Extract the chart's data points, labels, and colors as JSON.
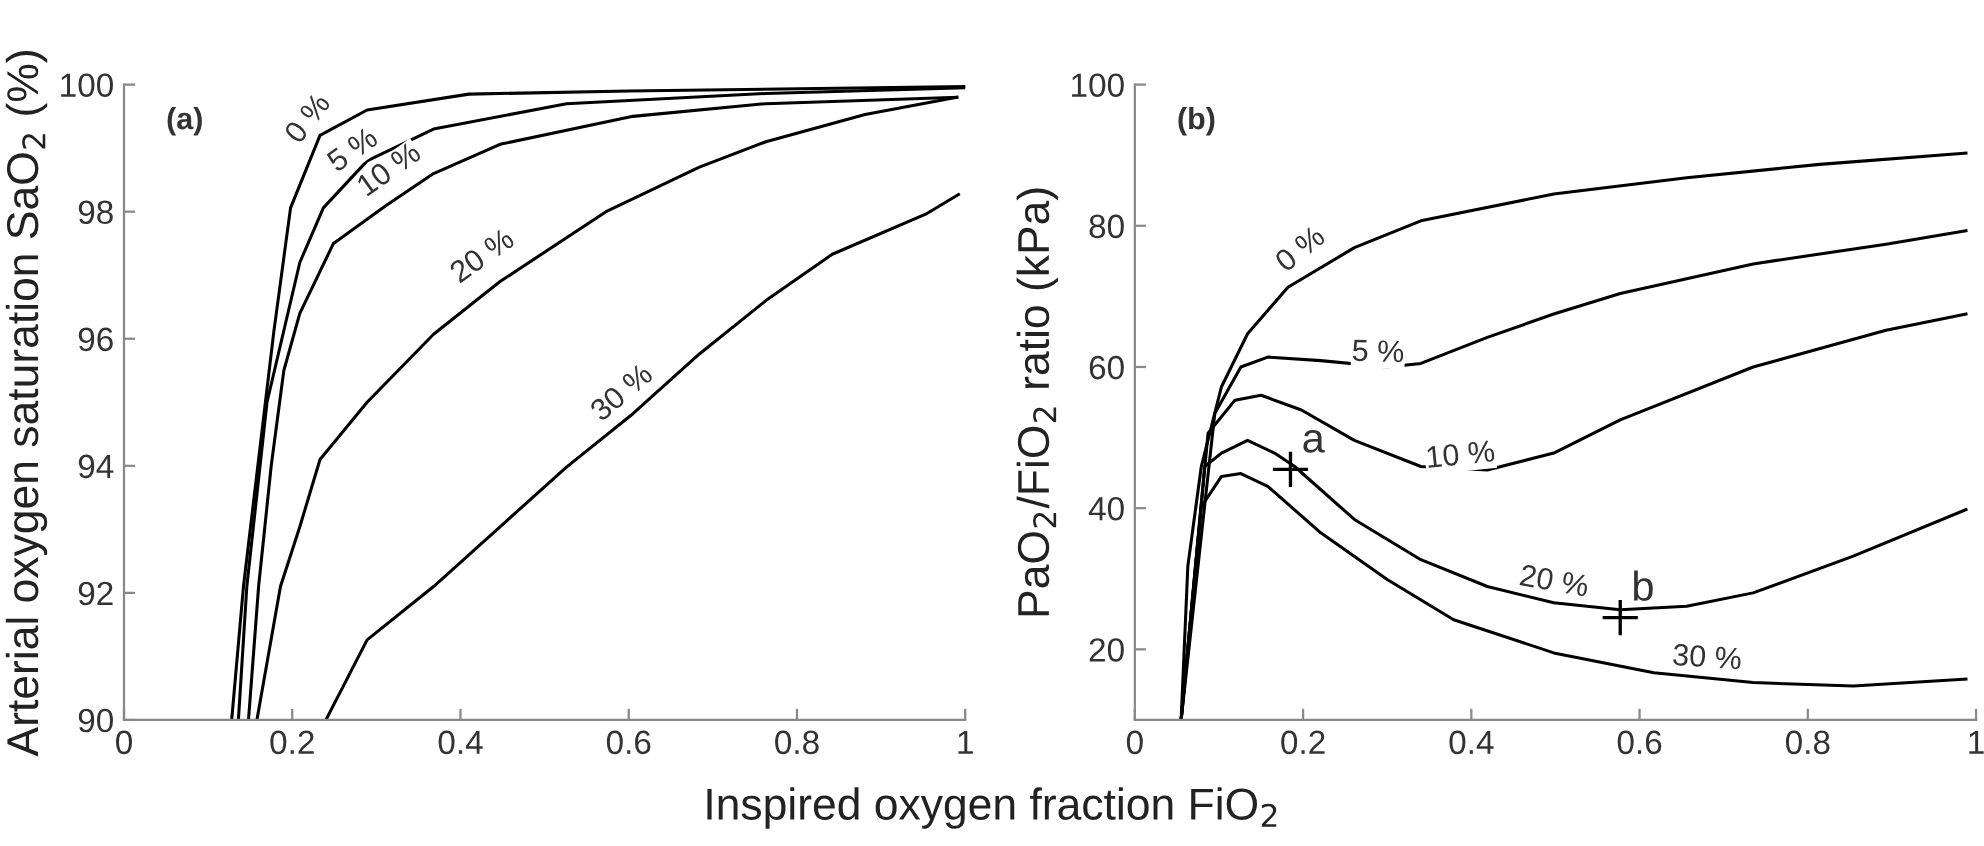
{
  "chart_data": [
    {
      "type": "line",
      "xlabel": "Inspired oxygen fraction FiO$_{2}$",
      "ylabel": "Arterial oxygen saturation SaO$_{2}$ (%)",
      "xlim": [
        0,
        1
      ],
      "ylim": [
        90,
        100
      ],
      "xticks": [
        0,
        0.2,
        0.4,
        0.6,
        0.8,
        1
      ],
      "yticks": [
        90,
        92,
        94,
        96,
        98,
        100
      ],
      "grid": false,
      "legend": false,
      "annotations": [
        "(a)",
        {
          "text": "0 %",
          "x": 0.22,
          "y": 99.45
        },
        {
          "text": "5 %",
          "x": 0.273,
          "y": 98.95
        },
        {
          "text": "10 %",
          "x": 0.316,
          "y": 98.64
        },
        {
          "text": "20 %",
          "x": 0.427,
          "y": 97.28
        },
        {
          "text": "30 %",
          "x": 0.593,
          "y": 95.13
        }
      ],
      "series": [
        {
          "color": "#000000",
          "x": [
            0.128,
            0.142,
            0.178,
            0.198,
            0.233,
            0.289,
            0.41,
            0.6,
            1.0
          ],
          "values": [
            90,
            92.1,
            96.1,
            98.06,
            99.2,
            99.6,
            99.85,
            99.9,
            99.97
          ]
        },
        {
          "color": "#000000",
          "x": [
            0.136,
            0.146,
            0.17,
            0.209,
            0.237,
            0.289,
            0.368,
            0.526,
            0.763,
            1.0
          ],
          "values": [
            90,
            92.1,
            95.0,
            97.2,
            98.06,
            98.8,
            99.3,
            99.7,
            99.86,
            99.95
          ]
        },
        {
          "color": "#000000",
          "x": [
            0.148,
            0.16,
            0.175,
            0.19,
            0.209,
            0.249,
            0.312,
            0.368,
            0.447,
            0.605,
            0.763,
            0.99
          ],
          "values": [
            90,
            92.1,
            94.0,
            95.5,
            96.4,
            97.5,
            98.1,
            98.6,
            99.06,
            99.5,
            99.7,
            99.8
          ]
        },
        {
          "color": "#000000",
          "x": [
            0.158,
            0.186,
            0.209,
            0.233,
            0.289,
            0.368,
            0.447,
            0.573,
            0.684,
            0.763,
            0.881,
            0.99
          ],
          "values": [
            90,
            92.1,
            93.04,
            94.1,
            95.0,
            96.07,
            96.9,
            98.0,
            98.7,
            99.1,
            99.53,
            99.8
          ]
        },
        {
          "color": "#000000",
          "x": [
            0.24,
            0.289,
            0.368,
            0.447,
            0.526,
            0.605,
            0.684,
            0.763,
            0.842,
            0.953,
            0.992
          ],
          "values": [
            90,
            91.26,
            92.1,
            93.04,
            93.98,
            94.82,
            95.76,
            96.6,
            97.33,
            97.96,
            98.27
          ]
        }
      ]
    },
    {
      "type": "line",
      "ylabel": "PaO$_{2}$/FiO$_{2}$ ratio (kPa)",
      "xlim": [
        0,
        1
      ],
      "ylim": [
        10,
        100
      ],
      "xticks": [
        0,
        0.2,
        0.4,
        0.6,
        0.8,
        1
      ],
      "yticks": [
        20,
        40,
        60,
        80,
        100
      ],
      "grid": false,
      "legend": false,
      "annotations": [
        "(b)",
        {
          "text": "0 %",
          "x": 0.198,
          "y": 76.5
        },
        {
          "text": "5 %",
          "x": 0.289,
          "y": 61.9
        },
        {
          "text": "10 %",
          "x": 0.387,
          "y": 47.3
        },
        {
          "text": "20 %",
          "x": 0.498,
          "y": 29.4
        },
        {
          "text": "30 %",
          "x": 0.68,
          "y": 18.6
        },
        {
          "text": "a",
          "x": 0.185,
          "y": 45.5
        },
        {
          "text": "b",
          "x": 0.577,
          "y": 24.5
        }
      ],
      "series": [
        {
          "color": "#000000",
          "x": [
            0.055,
            0.063,
            0.079,
            0.103,
            0.134,
            0.182,
            0.261,
            0.34,
            0.498,
            0.656,
            0.814,
            0.988
          ],
          "values": [
            10,
            31.8,
            45.9,
            57.2,
            64.7,
            71.3,
            76.9,
            80.7,
            84.5,
            86.8,
            88.7,
            90.3
          ]
        },
        {
          "color": "#000000",
          "x": [
            0.055,
            0.095,
            0.126,
            0.158,
            0.221,
            0.3,
            0.34,
            0.419,
            0.498,
            0.577,
            0.735,
            0.893,
            0.988
          ],
          "values": [
            10,
            53.4,
            60.0,
            61.4,
            60.9,
            60.0,
            60.5,
            64.2,
            67.5,
            70.4,
            74.6,
            77.4,
            79.3
          ]
        },
        {
          "color": "#000000",
          "x": [
            0.055,
            0.087,
            0.119,
            0.15,
            0.198,
            0.261,
            0.34,
            0.419,
            0.498,
            0.577,
            0.735,
            0.893,
            0.988
          ],
          "values": [
            10,
            50.6,
            55.3,
            56.0,
            53.9,
            49.6,
            45.9,
            45.4,
            47.8,
            52.5,
            60.0,
            65.2,
            67.5
          ]
        },
        {
          "color": "#000000",
          "x": [
            0.055,
            0.083,
            0.103,
            0.134,
            0.166,
            0.19,
            0.261,
            0.34,
            0.419,
            0.498,
            0.577,
            0.656,
            0.735,
            0.854,
            0.988
          ],
          "values": [
            10,
            45.9,
            47.8,
            49.6,
            47.8,
            45.9,
            38.4,
            32.7,
            28.9,
            26.6,
            25.6,
            26.1,
            28.0,
            33.2,
            39.8
          ]
        },
        {
          "color": "#000000",
          "x": [
            0.055,
            0.079,
            0.103,
            0.126,
            0.158,
            0.221,
            0.3,
            0.379,
            0.498,
            0.617,
            0.735,
            0.854,
            0.988
          ],
          "values": [
            10,
            40.2,
            44.5,
            44.9,
            43.1,
            36.5,
            29.9,
            24.2,
            19.5,
            16.7,
            15.3,
            14.8,
            15.8
          ]
        },
        {
          "type": "scatter",
          "marker": "cross",
          "color": "#000000",
          "x": [
            0.185,
            0.577
          ],
          "values": [
            45.5,
            24.5
          ]
        }
      ]
    }
  ]
}
